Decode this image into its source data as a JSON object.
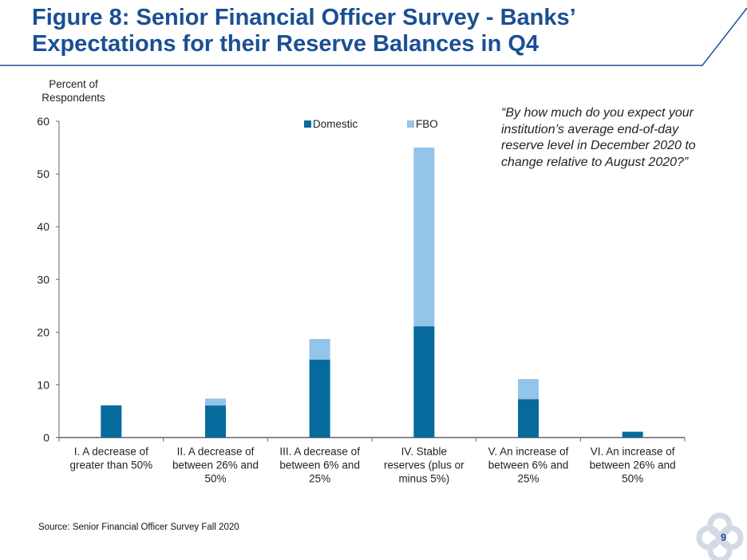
{
  "title_line1": "Figure 8: Senior Financial Officer Survey - Banks’",
  "title_line2": "Expectations for their Reserve Balances in Q4",
  "quote": "“By how much do you expect your institution’s average end-of-day reserve level in December 2020 to change relative to August 2020?”",
  "source": "Source: Senior Financial Officer Survey Fall 2020",
  "page_number": "9",
  "colors": {
    "title": "#1a4f94",
    "domestic": "#066b9c",
    "fbo": "#93c4ea"
  },
  "chart_data": {
    "type": "bar",
    "stacked": true,
    "ylabel": "Percent of Respondents",
    "ylim": [
      0,
      60
    ],
    "yticks": [
      0,
      10,
      20,
      30,
      40,
      50,
      60
    ],
    "grid": false,
    "legend_position": "top",
    "categories": [
      [
        "I. A decrease of",
        "greater than 50%"
      ],
      [
        "II. A decrease of",
        "between 26% and",
        "50%"
      ],
      [
        "III. A decrease of",
        "between 6% and",
        "25%"
      ],
      [
        "IV. Stable",
        "reserves (plus or",
        "minus 5%)"
      ],
      [
        "V. An increase of",
        "between 6% and",
        "25%"
      ],
      [
        "VI. An increase of",
        "between 26% and",
        "50%"
      ]
    ],
    "series": [
      {
        "name": "Domestic",
        "values": [
          6.1,
          6.1,
          14.8,
          21.1,
          7.3,
          1.1
        ]
      },
      {
        "name": "FBO",
        "values": [
          0,
          1.3,
          3.9,
          33.9,
          3.8,
          0
        ]
      }
    ]
  }
}
